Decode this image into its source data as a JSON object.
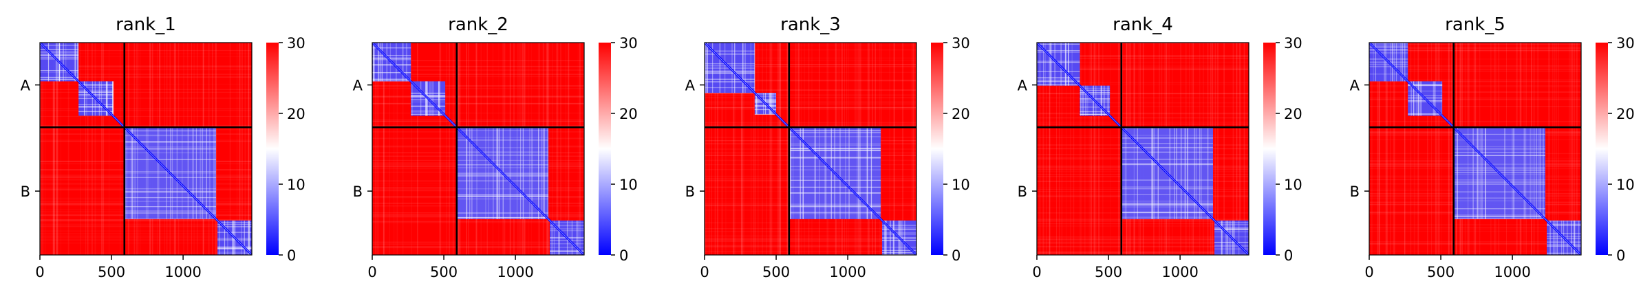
{
  "chart_data": [
    {
      "type": "heatmap",
      "title": "rank_1",
      "x_ticks": [
        0,
        500,
        1000
      ],
      "y_tick_labels": [
        "A",
        "B"
      ],
      "chain_boundary": 590,
      "matrix_size": 1480,
      "colorbar": {
        "ticks": [
          0,
          10,
          20,
          30
        ],
        "range": [
          0,
          30
        ],
        "colormap": "bwr",
        "colors": [
          "#0000ff",
          "#ffffff",
          "#ff0000"
        ]
      },
      "chain_A_domains": [
        [
          0,
          270
        ],
        [
          270,
          510
        ]
      ],
      "chain_B_domains": [
        [
          590,
          1230
        ],
        [
          1240,
          1480
        ]
      ]
    },
    {
      "type": "heatmap",
      "title": "rank_2",
      "x_ticks": [
        0,
        500,
        1000
      ],
      "y_tick_labels": [
        "A",
        "B"
      ],
      "chain_boundary": 590,
      "matrix_size": 1480,
      "colorbar": {
        "ticks": [
          0,
          10,
          20,
          30
        ],
        "range": [
          0,
          30
        ],
        "colormap": "bwr",
        "colors": [
          "#0000ff",
          "#ffffff",
          "#ff0000"
        ]
      },
      "chain_A_domains": [
        [
          0,
          270
        ],
        [
          270,
          510
        ]
      ],
      "chain_B_domains": [
        [
          590,
          1230
        ],
        [
          1240,
          1480
        ]
      ]
    },
    {
      "type": "heatmap",
      "title": "rank_3",
      "x_ticks": [
        0,
        500,
        1000
      ],
      "y_tick_labels": [
        "A",
        "B"
      ],
      "chain_boundary": 590,
      "matrix_size": 1480,
      "colorbar": {
        "ticks": [
          0,
          10,
          20,
          30
        ],
        "range": [
          0,
          30
        ],
        "colormap": "bwr",
        "colors": [
          "#0000ff",
          "#ffffff",
          "#ff0000"
        ]
      },
      "chain_A_domains": [
        [
          0,
          350
        ],
        [
          350,
          500
        ]
      ],
      "chain_B_domains": [
        [
          590,
          1230
        ],
        [
          1240,
          1480
        ]
      ]
    },
    {
      "type": "heatmap",
      "title": "rank_4",
      "x_ticks": [
        0,
        500,
        1000
      ],
      "y_tick_labels": [
        "A",
        "B"
      ],
      "chain_boundary": 590,
      "matrix_size": 1480,
      "colorbar": {
        "ticks": [
          0,
          10,
          20,
          30
        ],
        "range": [
          0,
          30
        ],
        "colormap": "bwr",
        "colors": [
          "#0000ff",
          "#ffffff",
          "#ff0000"
        ]
      },
      "chain_A_domains": [
        [
          0,
          300
        ],
        [
          300,
          510
        ]
      ],
      "chain_B_domains": [
        [
          590,
          1230
        ],
        [
          1240,
          1480
        ]
      ]
    },
    {
      "type": "heatmap",
      "title": "rank_5",
      "x_ticks": [
        0,
        500,
        1000
      ],
      "y_tick_labels": [
        "A",
        "B"
      ],
      "chain_boundary": 590,
      "matrix_size": 1480,
      "colorbar": {
        "ticks": [
          0,
          10,
          20,
          30
        ],
        "range": [
          0,
          30
        ],
        "colormap": "bwr",
        "colors": [
          "#0000ff",
          "#ffffff",
          "#ff0000"
        ]
      },
      "chain_A_domains": [
        [
          0,
          270
        ],
        [
          270,
          510
        ]
      ],
      "chain_B_domains": [
        [
          590,
          1230
        ],
        [
          1240,
          1480
        ]
      ]
    }
  ]
}
